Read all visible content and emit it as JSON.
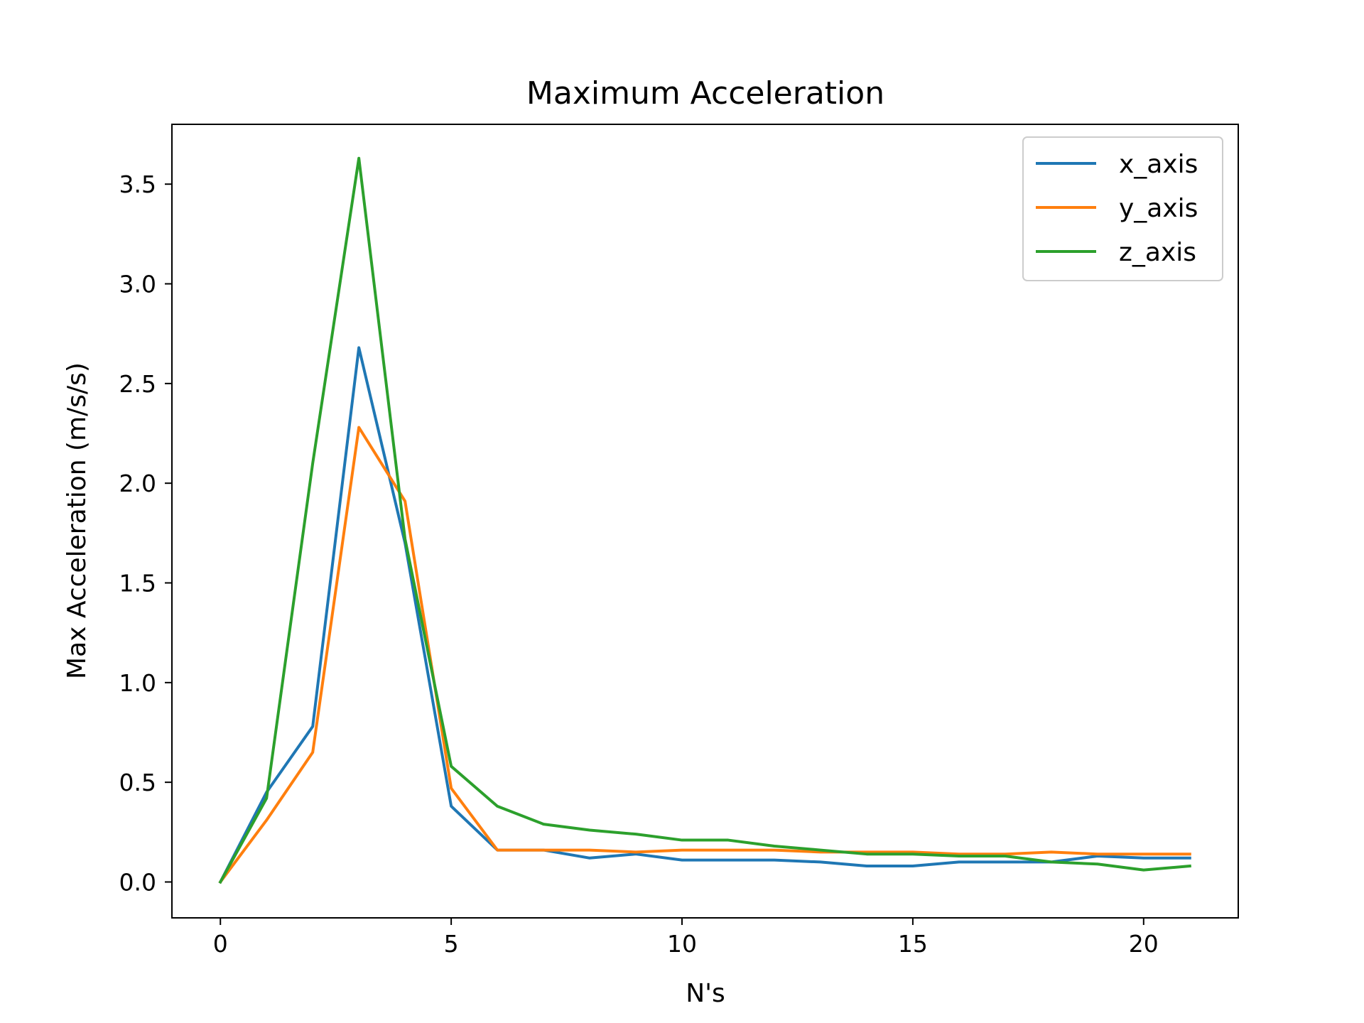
{
  "chart_data": {
    "type": "line",
    "title": "Maximum Acceleration",
    "xlabel": "N's",
    "ylabel": "Max Acceleration (m/s/s)",
    "xlim": [
      -1.05,
      22.05
    ],
    "ylim": [
      -0.18,
      3.8
    ],
    "xticks": [
      0,
      5,
      10,
      15,
      20
    ],
    "yticks": [
      0.0,
      0.5,
      1.0,
      1.5,
      2.0,
      2.5,
      3.0,
      3.5
    ],
    "xtick_labels": [
      "0",
      "5",
      "10",
      "15",
      "20"
    ],
    "ytick_labels": [
      "0.0",
      "0.5",
      "1.0",
      "1.5",
      "2.0",
      "2.5",
      "3.0",
      "3.5"
    ],
    "grid": false,
    "legend_position": "top-right",
    "x": [
      0,
      1,
      2,
      3,
      4,
      5,
      6,
      7,
      8,
      9,
      10,
      11,
      12,
      13,
      14,
      15,
      16,
      17,
      18,
      19,
      20,
      21
    ],
    "series": [
      {
        "name": "x_axis",
        "color": "#1f77b4",
        "values": [
          0.0,
          0.45,
          0.78,
          2.68,
          1.7,
          0.38,
          0.16,
          0.16,
          0.12,
          0.14,
          0.11,
          0.11,
          0.11,
          0.1,
          0.08,
          0.08,
          0.1,
          0.1,
          0.1,
          0.13,
          0.12,
          0.12
        ]
      },
      {
        "name": "y_axis",
        "color": "#ff7f0e",
        "values": [
          0.0,
          0.31,
          0.65,
          2.28,
          1.91,
          0.47,
          0.16,
          0.16,
          0.16,
          0.15,
          0.16,
          0.16,
          0.16,
          0.15,
          0.15,
          0.15,
          0.14,
          0.14,
          0.15,
          0.14,
          0.14,
          0.14
        ]
      },
      {
        "name": "z_axis",
        "color": "#2ca02c",
        "values": [
          0.0,
          0.42,
          2.1,
          3.63,
          1.72,
          0.58,
          0.38,
          0.29,
          0.26,
          0.24,
          0.21,
          0.21,
          0.18,
          0.16,
          0.14,
          0.14,
          0.13,
          0.13,
          0.1,
          0.09,
          0.06,
          0.08
        ]
      }
    ]
  }
}
